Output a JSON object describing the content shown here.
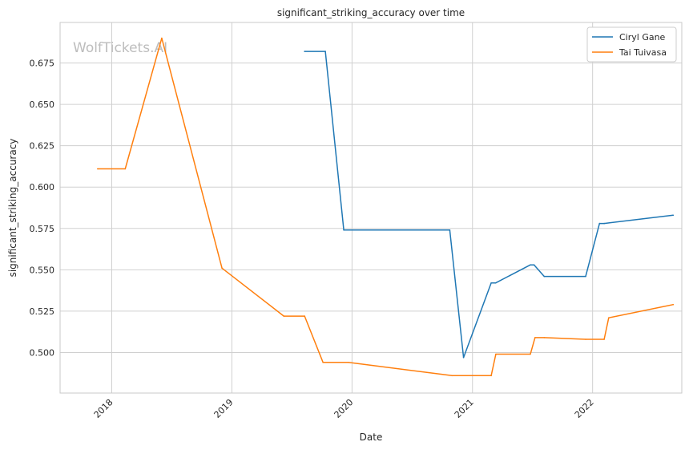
{
  "chart_data": {
    "type": "line",
    "title": "significant_striking_accuracy over time",
    "xlabel": "Date",
    "ylabel": "significant_striking_accuracy",
    "watermark": "WolfTickets.AI",
    "x_ticks": [
      "2018",
      "2019",
      "2020",
      "2021",
      "2022"
    ],
    "y_ticks": [
      "0.500",
      "0.525",
      "0.550",
      "0.575",
      "0.600",
      "0.625",
      "0.650",
      "0.675"
    ],
    "ylim": [
      0.4755,
      0.6995
    ],
    "xlim": [
      "2017-07-28",
      "2022-09-29"
    ],
    "grid": true,
    "legend_position": "top-right",
    "colors": {
      "Ciryl Gane": "#1f77b4",
      "Tai Tuivasa": "#ff7f0e"
    },
    "series": [
      {
        "name": "Ciryl Gane",
        "points": [
          [
            "2019-08-10",
            0.682
          ],
          [
            "2019-10-12",
            0.682
          ],
          [
            "2019-12-07",
            0.574
          ],
          [
            "2020-10-24",
            0.574
          ],
          [
            "2020-12-05",
            0.497
          ],
          [
            "2021-02-27",
            0.542
          ],
          [
            "2021-03-12",
            0.542
          ],
          [
            "2021-06-26",
            0.553
          ],
          [
            "2021-07-07",
            0.553
          ],
          [
            "2021-08-07",
            0.546
          ],
          [
            "2021-12-11",
            0.546
          ],
          [
            "2022-01-22",
            0.578
          ],
          [
            "2022-02-05",
            0.578
          ],
          [
            "2022-09-03",
            0.583
          ]
        ]
      },
      {
        "name": "Tai Tuivasa",
        "points": [
          [
            "2017-11-19",
            0.611
          ],
          [
            "2018-02-11",
            0.611
          ],
          [
            "2018-06-02",
            0.69
          ],
          [
            "2018-12-02",
            0.551
          ],
          [
            "2019-06-08",
            0.522
          ],
          [
            "2019-08-10",
            0.522
          ],
          [
            "2019-10-05",
            0.494
          ],
          [
            "2019-12-21",
            0.494
          ],
          [
            "2020-10-31",
            0.486
          ],
          [
            "2021-02-27",
            0.486
          ],
          [
            "2021-03-13",
            0.499
          ],
          [
            "2021-06-26",
            0.499
          ],
          [
            "2021-07-10",
            0.509
          ],
          [
            "2021-08-07",
            0.509
          ],
          [
            "2021-12-11",
            0.508
          ],
          [
            "2022-02-05",
            0.508
          ],
          [
            "2022-02-19",
            0.521
          ],
          [
            "2022-09-03",
            0.529
          ]
        ]
      }
    ]
  }
}
